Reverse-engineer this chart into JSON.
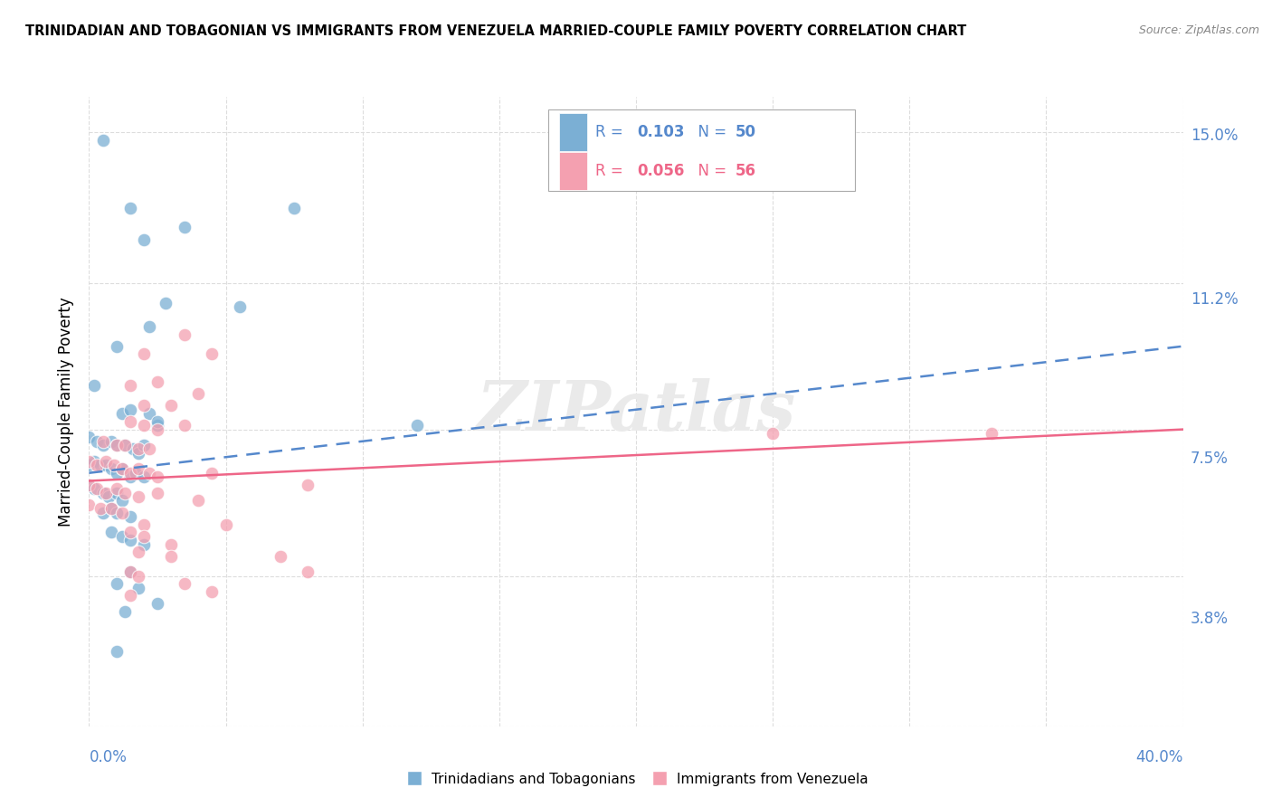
{
  "title": "TRINIDADIAN AND TOBAGONIAN VS IMMIGRANTS FROM VENEZUELA MARRIED-COUPLE FAMILY POVERTY CORRELATION CHART",
  "source": "Source: ZipAtlas.com",
  "ylabel": "Married-Couple Family Poverty",
  "watermark": "ZIPatlas",
  "legend_label_blue": "Trinidadians and Tobagonians",
  "legend_label_pink": "Immigrants from Venezuela",
  "blue_color": "#7BAFD4",
  "pink_color": "#F4A0B0",
  "blue_line_color": "#5588CC",
  "pink_line_color": "#EE6688",
  "blue_scatter": [
    [
      0.5,
      14.8
    ],
    [
      1.5,
      13.1
    ],
    [
      2.0,
      12.3
    ],
    [
      3.5,
      12.6
    ],
    [
      7.5,
      13.1
    ],
    [
      1.0,
      9.6
    ],
    [
      2.2,
      10.1
    ],
    [
      2.8,
      10.7
    ],
    [
      5.5,
      10.6
    ],
    [
      0.2,
      8.6
    ],
    [
      1.2,
      7.9
    ],
    [
      1.5,
      8.0
    ],
    [
      2.2,
      7.9
    ],
    [
      2.5,
      7.6
    ],
    [
      0.0,
      7.3
    ],
    [
      0.3,
      7.2
    ],
    [
      0.5,
      7.1
    ],
    [
      0.8,
      7.2
    ],
    [
      1.0,
      7.1
    ],
    [
      1.3,
      7.1
    ],
    [
      1.6,
      7.0
    ],
    [
      1.8,
      6.9
    ],
    [
      2.0,
      7.1
    ],
    [
      0.0,
      6.6
    ],
    [
      0.2,
      6.7
    ],
    [
      0.4,
      6.6
    ],
    [
      0.6,
      6.6
    ],
    [
      0.8,
      6.5
    ],
    [
      1.0,
      6.4
    ],
    [
      1.2,
      6.5
    ],
    [
      1.5,
      6.3
    ],
    [
      1.7,
      6.4
    ],
    [
      2.0,
      6.3
    ],
    [
      0.0,
      6.1
    ],
    [
      0.2,
      6.0
    ],
    [
      0.5,
      5.9
    ],
    [
      0.7,
      5.8
    ],
    [
      1.0,
      5.9
    ],
    [
      1.2,
      5.7
    ],
    [
      2.5,
      7.7
    ],
    [
      12.0,
      7.6
    ],
    [
      0.5,
      5.4
    ],
    [
      0.8,
      5.5
    ],
    [
      1.0,
      5.4
    ],
    [
      1.5,
      5.3
    ],
    [
      0.8,
      4.9
    ],
    [
      1.2,
      4.8
    ],
    [
      1.5,
      4.7
    ],
    [
      2.0,
      4.6
    ],
    [
      1.5,
      3.9
    ],
    [
      1.0,
      3.6
    ],
    [
      1.8,
      3.5
    ],
    [
      1.3,
      2.9
    ],
    [
      2.5,
      3.1
    ],
    [
      1.0,
      1.9
    ]
  ],
  "pink_scatter": [
    [
      3.5,
      9.9
    ],
    [
      2.0,
      9.4
    ],
    [
      4.5,
      9.4
    ],
    [
      1.5,
      8.6
    ],
    [
      2.5,
      8.7
    ],
    [
      4.0,
      8.4
    ],
    [
      2.0,
      8.1
    ],
    [
      3.0,
      8.1
    ],
    [
      1.5,
      7.7
    ],
    [
      2.0,
      7.6
    ],
    [
      2.5,
      7.5
    ],
    [
      3.5,
      7.6
    ],
    [
      0.5,
      7.2
    ],
    [
      1.0,
      7.1
    ],
    [
      1.3,
      7.1
    ],
    [
      1.8,
      7.0
    ],
    [
      2.2,
      7.0
    ],
    [
      0.0,
      6.7
    ],
    [
      0.3,
      6.6
    ],
    [
      0.6,
      6.7
    ],
    [
      0.9,
      6.6
    ],
    [
      1.2,
      6.5
    ],
    [
      1.5,
      6.4
    ],
    [
      1.8,
      6.5
    ],
    [
      2.2,
      6.4
    ],
    [
      2.5,
      6.3
    ],
    [
      4.5,
      6.4
    ],
    [
      0.0,
      6.1
    ],
    [
      0.3,
      6.0
    ],
    [
      0.6,
      5.9
    ],
    [
      1.0,
      6.0
    ],
    [
      1.3,
      5.9
    ],
    [
      1.8,
      5.8
    ],
    [
      2.5,
      5.9
    ],
    [
      4.0,
      5.7
    ],
    [
      0.0,
      5.6
    ],
    [
      0.4,
      5.5
    ],
    [
      0.8,
      5.5
    ],
    [
      1.2,
      5.4
    ],
    [
      2.0,
      5.1
    ],
    [
      5.0,
      5.1
    ],
    [
      1.5,
      4.9
    ],
    [
      2.0,
      4.8
    ],
    [
      3.0,
      4.6
    ],
    [
      1.8,
      4.4
    ],
    [
      3.0,
      4.3
    ],
    [
      7.0,
      4.3
    ],
    [
      1.5,
      3.9
    ],
    [
      1.8,
      3.8
    ],
    [
      3.5,
      3.6
    ],
    [
      1.5,
      3.3
    ],
    [
      4.5,
      3.4
    ],
    [
      8.0,
      3.9
    ],
    [
      25.0,
      7.4
    ],
    [
      33.0,
      7.4
    ],
    [
      8.0,
      6.1
    ]
  ],
  "xlim": [
    0,
    40
  ],
  "ylim_bottom": 1.3,
  "ylim_top": 15.9,
  "blue_trend_x": [
    0,
    40
  ],
  "blue_trend_y": [
    6.4,
    9.6
  ],
  "pink_trend_x": [
    0,
    40
  ],
  "pink_trend_y": [
    6.2,
    7.5
  ],
  "ytick_vals": [
    0.0,
    3.8,
    7.5,
    11.2,
    15.0
  ],
  "xtick_vals": [
    0,
    5,
    10,
    15,
    20,
    25,
    30,
    35,
    40
  ],
  "right_tick_color": "#5588CC",
  "grid_color": "#DDDDDD",
  "title_fontsize": 10.5,
  "axis_label_fontsize": 12,
  "source_text": "Source: ZipAtlas.com"
}
